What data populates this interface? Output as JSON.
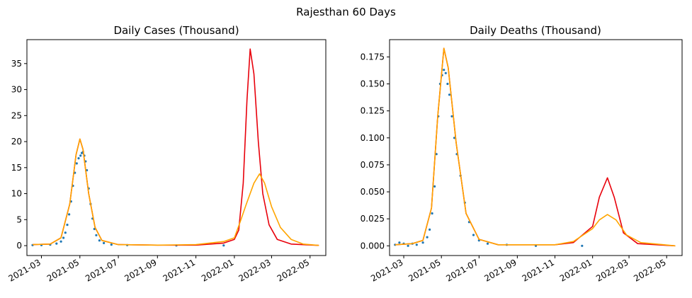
{
  "figure": {
    "suptitle": "Rajesthan 60 Days"
  },
  "colors": {
    "observed": "#1f77b4",
    "red_fit": "#e8000b",
    "orange_fit": "#ffa500",
    "axis": "#000000"
  },
  "chart_data": [
    {
      "type": "line",
      "title": "Daily Cases (Thousand)",
      "xlabel": "",
      "ylabel": "",
      "x_axis": "date",
      "xlim": [
        "2021-02-06",
        "2022-05-26"
      ],
      "ylim": [
        -1.9,
        39.6
      ],
      "x_ticks": [
        "2021-03-01",
        "2021-05-01",
        "2021-07-01",
        "2021-09-01",
        "2021-11-01",
        "2022-01-01",
        "2022-03-01",
        "2022-05-01"
      ],
      "x_tick_labels": [
        "2021-03",
        "2021-05",
        "2021-07",
        "2021-09",
        "2021-11",
        "2022-01",
        "2022-03",
        "2022-05"
      ],
      "y_ticks": [
        0,
        5,
        10,
        15,
        20,
        25,
        30,
        35
      ],
      "y_tick_labels": [
        "0",
        "5",
        "10",
        "15",
        "20",
        "25",
        "30",
        "35"
      ],
      "grid": false,
      "series": [
        {
          "kind": "scatter",
          "color": "#1f77b4",
          "points": [
            [
              "2021-02-15",
              0.1
            ],
            [
              "2021-03-01",
              0.1
            ],
            [
              "2021-03-15",
              0.2
            ],
            [
              "2021-03-25",
              0.4
            ],
            [
              "2021-04-01",
              0.8
            ],
            [
              "2021-04-05",
              1.5
            ],
            [
              "2021-04-08",
              2.5
            ],
            [
              "2021-04-11",
              4.0
            ],
            [
              "2021-04-14",
              6.0
            ],
            [
              "2021-04-17",
              8.5
            ],
            [
              "2021-04-20",
              11.5
            ],
            [
              "2021-04-23",
              14.0
            ],
            [
              "2021-04-26",
              15.8
            ],
            [
              "2021-04-29",
              16.8
            ],
            [
              "2021-05-02",
              17.3
            ],
            [
              "2021-05-04",
              17.8
            ],
            [
              "2021-05-06",
              18.0
            ],
            [
              "2021-05-08",
              17.3
            ],
            [
              "2021-05-10",
              16.2
            ],
            [
              "2021-05-12",
              14.5
            ],
            [
              "2021-05-15",
              11.0
            ],
            [
              "2021-05-18",
              8.0
            ],
            [
              "2021-05-21",
              5.2
            ],
            [
              "2021-05-24",
              3.2
            ],
            [
              "2021-05-27",
              2.0
            ],
            [
              "2021-06-01",
              1.0
            ],
            [
              "2021-06-08",
              0.5
            ],
            [
              "2021-06-20",
              0.2
            ],
            [
              "2021-07-15",
              0.1
            ],
            [
              "2021-10-01",
              0.05
            ],
            [
              "2021-12-15",
              0.05
            ]
          ]
        },
        {
          "kind": "line",
          "color": "#e8000b",
          "points": [
            [
              "2021-02-15",
              0.2
            ],
            [
              "2021-03-15",
              0.3
            ],
            [
              "2021-04-01",
              1.5
            ],
            [
              "2021-04-15",
              8.0
            ],
            [
              "2021-04-25",
              17.5
            ],
            [
              "2021-05-01",
              20.5
            ],
            [
              "2021-05-06",
              18.5
            ],
            [
              "2021-05-15",
              10.0
            ],
            [
              "2021-05-25",
              3.5
            ],
            [
              "2021-06-05",
              1.0
            ],
            [
              "2021-07-01",
              0.2
            ],
            [
              "2021-09-01",
              0.1
            ],
            [
              "2021-11-01",
              0.1
            ],
            [
              "2021-12-15",
              0.5
            ],
            [
              "2022-01-01",
              1.2
            ],
            [
              "2022-01-08",
              3.0
            ],
            [
              "2022-01-15",
              12.0
            ],
            [
              "2022-01-21",
              28.0
            ],
            [
              "2022-01-26",
              37.8
            ],
            [
              "2022-02-01",
              33.0
            ],
            [
              "2022-02-08",
              20.0
            ],
            [
              "2022-02-15",
              10.0
            ],
            [
              "2022-02-25",
              4.0
            ],
            [
              "2022-03-10",
              1.2
            ],
            [
              "2022-04-01",
              0.3
            ],
            [
              "2022-05-15",
              0.05
            ]
          ]
        },
        {
          "kind": "line",
          "color": "#ffa500",
          "points": [
            [
              "2021-02-15",
              0.2
            ],
            [
              "2021-03-15",
              0.3
            ],
            [
              "2021-04-01",
              1.5
            ],
            [
              "2021-04-15",
              8.0
            ],
            [
              "2021-04-25",
              17.5
            ],
            [
              "2021-05-01",
              20.5
            ],
            [
              "2021-05-06",
              18.5
            ],
            [
              "2021-05-15",
              10.0
            ],
            [
              "2021-05-25",
              3.5
            ],
            [
              "2021-06-05",
              1.0
            ],
            [
              "2021-07-01",
              0.2
            ],
            [
              "2021-09-01",
              0.1
            ],
            [
              "2021-11-01",
              0.2
            ],
            [
              "2021-12-15",
              0.8
            ],
            [
              "2022-01-01",
              1.5
            ],
            [
              "2022-01-10",
              4.5
            ],
            [
              "2022-01-20",
              8.0
            ],
            [
              "2022-02-01",
              12.0
            ],
            [
              "2022-02-10",
              13.8
            ],
            [
              "2022-02-18",
              12.0
            ],
            [
              "2022-03-01",
              7.5
            ],
            [
              "2022-03-15",
              3.5
            ],
            [
              "2022-04-01",
              1.2
            ],
            [
              "2022-04-20",
              0.3
            ],
            [
              "2022-05-15",
              0.05
            ]
          ]
        }
      ]
    },
    {
      "type": "line",
      "title": "Daily Deaths (Thousand)",
      "xlabel": "",
      "ylabel": "",
      "x_axis": "date",
      "xlim": [
        "2021-02-06",
        "2022-05-26"
      ],
      "ylim": [
        -0.009,
        0.191
      ],
      "x_ticks": [
        "2021-03-01",
        "2021-05-01",
        "2021-07-01",
        "2021-09-01",
        "2021-11-01",
        "2022-01-01",
        "2022-03-01",
        "2022-05-01"
      ],
      "x_tick_labels": [
        "2021-03",
        "2021-05",
        "2021-07",
        "2021-09",
        "2021-11",
        "2022-01",
        "2022-03",
        "2022-05"
      ],
      "y_ticks": [
        0,
        0.025,
        0.05,
        0.075,
        0.1,
        0.125,
        0.15,
        0.175
      ],
      "y_tick_labels": [
        "0.000",
        "0.025",
        "0.050",
        "0.075",
        "0.100",
        "0.125",
        "0.150",
        "0.175"
      ],
      "grid": false,
      "series": [
        {
          "kind": "scatter",
          "color": "#1f77b4",
          "points": [
            [
              "2021-02-15",
              0.001
            ],
            [
              "2021-02-22",
              0.003
            ],
            [
              "2021-03-01",
              0.002
            ],
            [
              "2021-03-08",
              0.0
            ],
            [
              "2021-03-15",
              0.002
            ],
            [
              "2021-03-22",
              0.001
            ],
            [
              "2021-04-01",
              0.003
            ],
            [
              "2021-04-08",
              0.008
            ],
            [
              "2021-04-12",
              0.015
            ],
            [
              "2021-04-16",
              0.03
            ],
            [
              "2021-04-20",
              0.055
            ],
            [
              "2021-04-23",
              0.085
            ],
            [
              "2021-04-26",
              0.12
            ],
            [
              "2021-04-29",
              0.15
            ],
            [
              "2021-05-02",
              0.158
            ],
            [
              "2021-05-05",
              0.163
            ],
            [
              "2021-05-08",
              0.16
            ],
            [
              "2021-05-11",
              0.15
            ],
            [
              "2021-05-14",
              0.14
            ],
            [
              "2021-05-18",
              0.12
            ],
            [
              "2021-05-22",
              0.1
            ],
            [
              "2021-05-26",
              0.085
            ],
            [
              "2021-06-01",
              0.065
            ],
            [
              "2021-06-08",
              0.04
            ],
            [
              "2021-06-15",
              0.022
            ],
            [
              "2021-06-22",
              0.01
            ],
            [
              "2021-07-01",
              0.005
            ],
            [
              "2021-07-15",
              0.002
            ],
            [
              "2021-08-15",
              0.001
            ],
            [
              "2021-10-01",
              0.0
            ],
            [
              "2021-12-15",
              0.0
            ]
          ]
        },
        {
          "kind": "line",
          "color": "#e8000b",
          "points": [
            [
              "2021-02-15",
              0.001
            ],
            [
              "2021-03-15",
              0.002
            ],
            [
              "2021-04-01",
              0.005
            ],
            [
              "2021-04-15",
              0.035
            ],
            [
              "2021-04-25",
              0.12
            ],
            [
              "2021-05-05",
              0.183
            ],
            [
              "2021-05-12",
              0.165
            ],
            [
              "2021-05-25",
              0.095
            ],
            [
              "2021-06-10",
              0.03
            ],
            [
              "2021-07-01",
              0.006
            ],
            [
              "2021-08-01",
              0.001
            ],
            [
              "2021-11-01",
              0.001
            ],
            [
              "2021-12-01",
              0.003
            ],
            [
              "2022-01-01",
              0.018
            ],
            [
              "2022-01-12",
              0.045
            ],
            [
              "2022-01-25",
              0.063
            ],
            [
              "2022-02-05",
              0.045
            ],
            [
              "2022-02-20",
              0.012
            ],
            [
              "2022-03-15",
              0.002
            ],
            [
              "2022-05-15",
              0.0
            ]
          ]
        },
        {
          "kind": "line",
          "color": "#ffa500",
          "points": [
            [
              "2021-02-15",
              0.001
            ],
            [
              "2021-03-15",
              0.002
            ],
            [
              "2021-04-01",
              0.005
            ],
            [
              "2021-04-15",
              0.035
            ],
            [
              "2021-04-25",
              0.12
            ],
            [
              "2021-05-05",
              0.183
            ],
            [
              "2021-05-12",
              0.165
            ],
            [
              "2021-05-25",
              0.095
            ],
            [
              "2021-06-10",
              0.03
            ],
            [
              "2021-07-01",
              0.006
            ],
            [
              "2021-08-01",
              0.001
            ],
            [
              "2021-11-01",
              0.001
            ],
            [
              "2021-12-01",
              0.004
            ],
            [
              "2022-01-01",
              0.016
            ],
            [
              "2022-01-12",
              0.024
            ],
            [
              "2022-01-25",
              0.029
            ],
            [
              "2022-02-08",
              0.024
            ],
            [
              "2022-02-25",
              0.01
            ],
            [
              "2022-03-20",
              0.003
            ],
            [
              "2022-05-15",
              0.0
            ]
          ]
        }
      ]
    }
  ]
}
